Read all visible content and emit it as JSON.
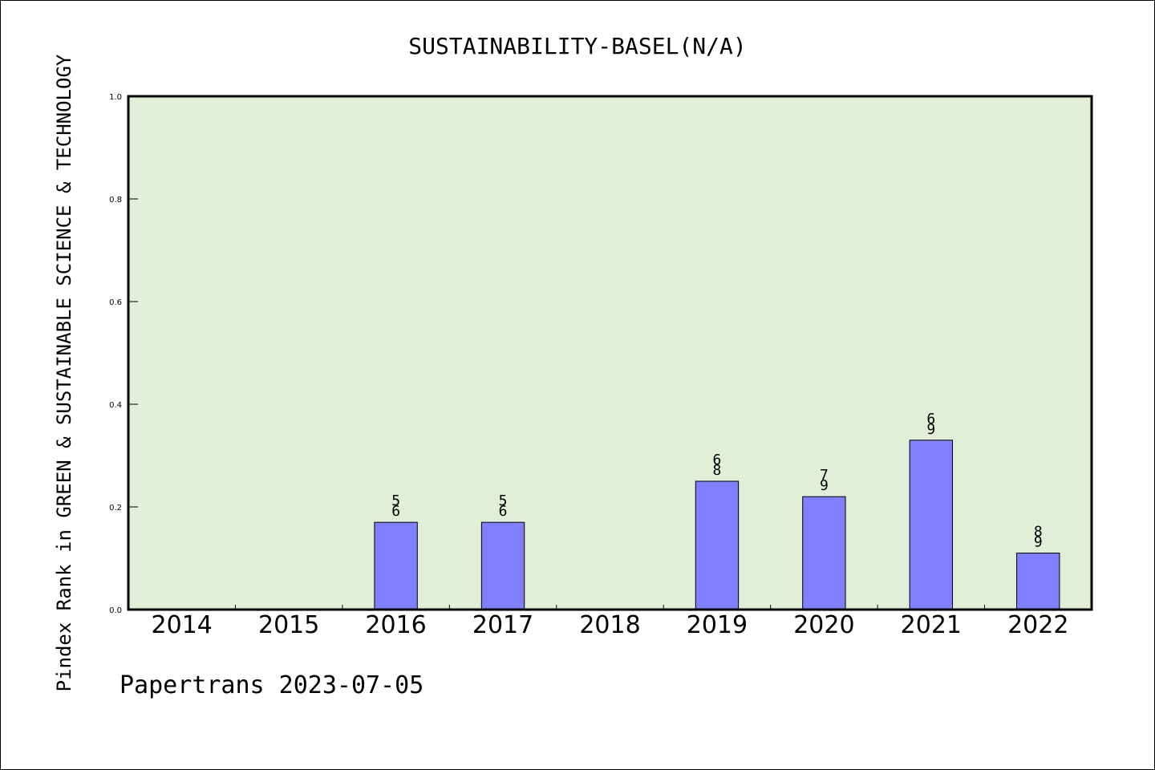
{
  "chart_data": {
    "type": "bar",
    "title": "SUSTAINABILITY-BASEL(N/A)",
    "ylabel": "Pindex Rank in GREEN & SUSTAINABLE SCIENCE & TECHNOLOGY",
    "xlabel": "",
    "categories": [
      "2014",
      "2015",
      "2016",
      "2017",
      "2018",
      "2019",
      "2020",
      "2021",
      "2022"
    ],
    "values": [
      null,
      null,
      0.17,
      0.17,
      null,
      0.25,
      0.22,
      0.33,
      0.11
    ],
    "bar_labels": [
      "",
      "",
      "5\n6",
      "5\n6",
      "",
      "6\n8",
      "7\n9",
      "6\n9",
      "8\n9"
    ],
    "ylim": [
      0,
      1.0
    ],
    "yticks": [
      "0.0",
      "0.2",
      "0.4",
      "0.6",
      "0.8",
      "1.0"
    ],
    "grid": false,
    "colors": {
      "plot_bg": "#e2efd6",
      "bar": "#8080ff"
    }
  },
  "footer": "Papertrans 2023-07-05"
}
